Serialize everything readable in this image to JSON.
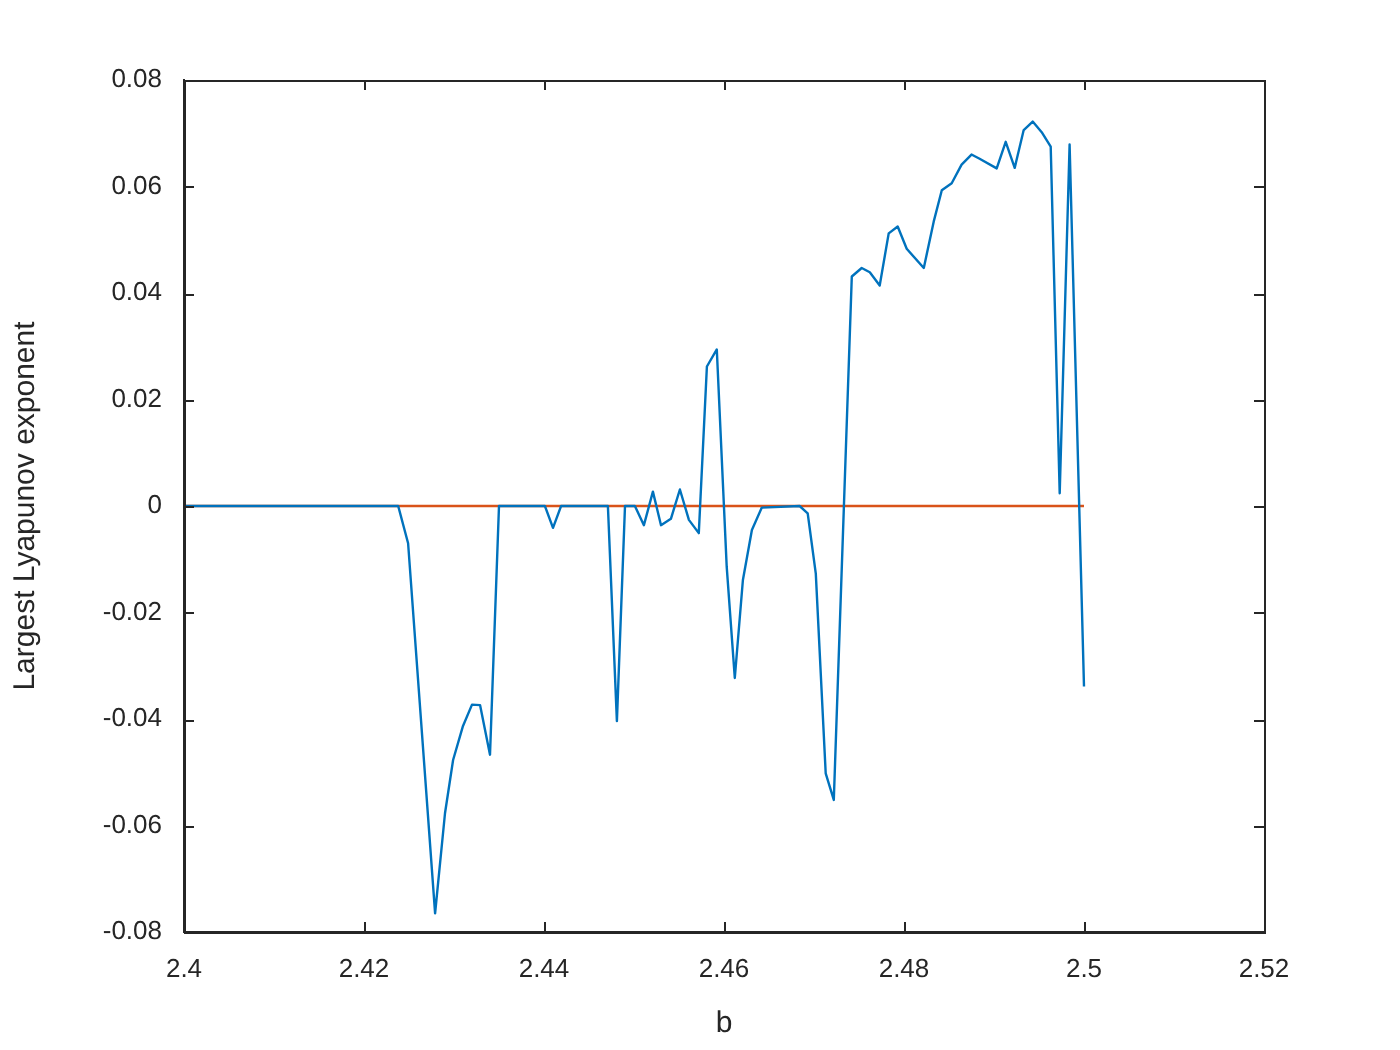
{
  "chart_data": {
    "type": "line",
    "xlabel": "b",
    "ylabel": "Largest Lyapunov exponent",
    "xlim": [
      2.4,
      2.52
    ],
    "xticks": [
      2.4,
      2.42,
      2.44,
      2.46,
      2.48,
      2.5,
      2.52
    ],
    "ylim": [
      -0.08,
      0.08
    ],
    "yticks": [
      -0.08,
      -0.06,
      -0.04,
      -0.02,
      0,
      0.02,
      0.04,
      0.06,
      0.08
    ],
    "marker": "none",
    "series": [
      {
        "color": "#0072bd",
        "x": [
          2.4,
          2.4238,
          2.4249,
          2.4279,
          2.429,
          2.4299,
          2.431,
          2.432,
          2.4329,
          2.434,
          2.435,
          2.4401,
          2.441,
          2.4419,
          2.4471,
          2.4481,
          2.449,
          2.4501,
          2.4511,
          2.4521,
          2.453,
          2.4541,
          2.4551,
          2.4561,
          2.4572,
          2.4581,
          2.4592,
          2.4603,
          2.4612,
          2.4621,
          2.4631,
          2.4642,
          2.4684,
          2.4693,
          2.4702,
          2.4713,
          2.4722,
          2.4742,
          2.4753,
          2.4762,
          2.4773,
          2.4783,
          2.4793,
          2.4803,
          2.4822,
          2.4833,
          2.4842,
          2.4853,
          2.4864,
          2.4875,
          2.4884,
          2.4903,
          2.4913,
          2.4923,
          2.4933,
          2.4943,
          2.4953,
          2.4963,
          2.4973,
          2.4984,
          2.5
        ],
        "values": [
          0,
          0,
          -0.007,
          -0.0765,
          -0.0577,
          -0.0477,
          -0.0413,
          -0.0373,
          -0.0374,
          -0.0467,
          0,
          0,
          -0.0041,
          0,
          0,
          -0.0404,
          0,
          0,
          -0.0036,
          0.0027,
          -0.0036,
          -0.0024,
          0.0031,
          -0.0026,
          -0.0051,
          0.0262,
          0.0294,
          -0.0114,
          -0.0323,
          -0.0139,
          -0.0045,
          -0.0003,
          0,
          -0.0014,
          -0.0127,
          -0.0502,
          -0.0552,
          0.0431,
          0.0447,
          0.0439,
          0.0414,
          0.0512,
          0.0525,
          0.0483,
          0.0447,
          0.0534,
          0.0593,
          0.0606,
          0.0641,
          0.066,
          0.0652,
          0.0634,
          0.0684,
          0.0635,
          0.0706,
          0.0722,
          0.0702,
          0.0675,
          0.0024,
          0.0679,
          -0.0339
        ]
      },
      {
        "color": "#d95319",
        "x": [
          2.4,
          2.5
        ],
        "values": [
          0,
          0
        ]
      }
    ]
  }
}
